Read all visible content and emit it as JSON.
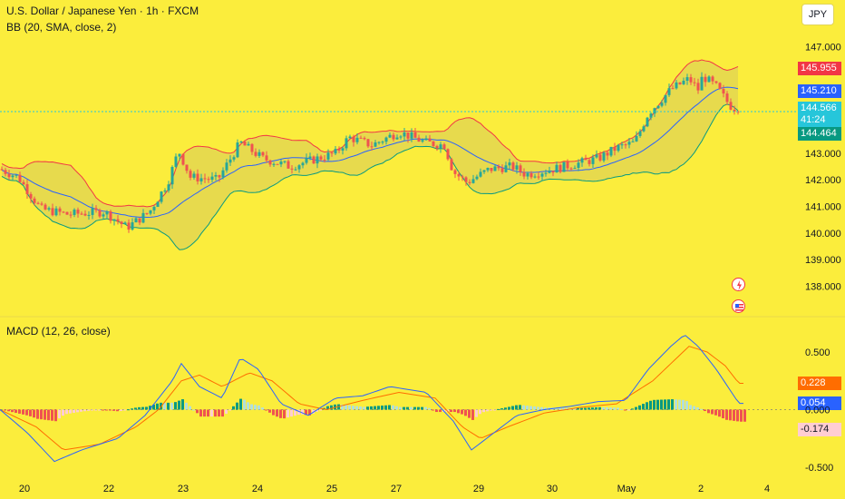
{
  "header": {
    "title": "U.S. Dollar / Japanese Yen · 1h · FXCM",
    "bb_label": "BB (20, SMA, close, 2)",
    "macd_label": "MACD (12, 26, close)",
    "currency": "JPY"
  },
  "price_labels": {
    "bb_upper": "145.955",
    "bb_middle": "145.210",
    "last_price": "144.566",
    "countdown": "41:24",
    "bb_lower": "144.464"
  },
  "macd_labels": {
    "signal": "0.228",
    "macd": "0.054",
    "histogram": "-0.174"
  },
  "colors": {
    "background": "#fbed3c",
    "up": "#26a69a",
    "down": "#ef5350",
    "bb_upper": "#f23645",
    "bb_basis": "#2962ff",
    "bb_lower": "#089981",
    "macd": "#2962ff",
    "signal": "#ff6d00"
  },
  "chart_data": [
    {
      "type": "candlestick",
      "title": "U.S. Dollar / Japanese Yen · 1h · FXCM",
      "indicator": "BB (20, SMA, close, 2)",
      "x_ticks": [
        "20",
        "22",
        "23",
        "24",
        "25",
        "27",
        "29",
        "30",
        "May",
        "2",
        "4"
      ],
      "y_ticks": [
        "147.000",
        "143.000",
        "142.000",
        "141.000",
        "140.000",
        "139.000",
        "138.000"
      ],
      "ylim": [
        137.5,
        147.4
      ],
      "price_anchors": [
        [
          0,
          142.4
        ],
        [
          20,
          142.1
        ],
        [
          45,
          140.9
        ],
        [
          75,
          140.7
        ],
        [
          115,
          140.8
        ],
        [
          140,
          140.2
        ],
        [
          165,
          140.8
        ],
        [
          185,
          141.9
        ],
        [
          197,
          143.1
        ],
        [
          210,
          142.1
        ],
        [
          240,
          142.0
        ],
        [
          265,
          143.4
        ],
        [
          290,
          142.8
        ],
        [
          320,
          142.5
        ],
        [
          350,
          142.8
        ],
        [
          370,
          143.0
        ],
        [
          385,
          143.6
        ],
        [
          410,
          143.3
        ],
        [
          440,
          143.8
        ],
        [
          470,
          143.4
        ],
        [
          490,
          143.3
        ],
        [
          500,
          142.3
        ],
        [
          515,
          141.9
        ],
        [
          540,
          142.4
        ],
        [
          565,
          142.5
        ],
        [
          580,
          142.2
        ],
        [
          610,
          142.4
        ],
        [
          635,
          142.6
        ],
        [
          660,
          142.8
        ],
        [
          680,
          143.2
        ],
        [
          700,
          143.4
        ],
        [
          715,
          144.5
        ],
        [
          740,
          145.4
        ],
        [
          760,
          145.8
        ],
        [
          770,
          145.4
        ],
        [
          775,
          145.9
        ],
        [
          790,
          145.5
        ],
        [
          805,
          144.8
        ],
        [
          815,
          144.6
        ]
      ],
      "last_price": 144.566
    },
    {
      "type": "macd",
      "title": "MACD (12, 26, close)",
      "y_ticks": [
        "0.500",
        "0.000",
        "-0.500"
      ],
      "ylim": [
        -0.6,
        0.72
      ],
      "macd_anchors": [
        [
          0,
          0.0
        ],
        [
          30,
          -0.2
        ],
        [
          60,
          -0.45
        ],
        [
          90,
          -0.35
        ],
        [
          130,
          -0.25
        ],
        [
          160,
          -0.05
        ],
        [
          190,
          0.25
        ],
        [
          200,
          0.4
        ],
        [
          220,
          0.2
        ],
        [
          245,
          0.1
        ],
        [
          265,
          0.45
        ],
        [
          285,
          0.35
        ],
        [
          310,
          0.05
        ],
        [
          340,
          -0.05
        ],
        [
          370,
          0.1
        ],
        [
          400,
          0.12
        ],
        [
          430,
          0.2
        ],
        [
          470,
          0.15
        ],
        [
          500,
          -0.1
        ],
        [
          520,
          -0.35
        ],
        [
          545,
          -0.2
        ],
        [
          570,
          -0.05
        ],
        [
          600,
          0.0
        ],
        [
          630,
          0.03
        ],
        [
          660,
          0.07
        ],
        [
          690,
          0.08
        ],
        [
          715,
          0.35
        ],
        [
          740,
          0.55
        ],
        [
          755,
          0.65
        ],
        [
          770,
          0.55
        ],
        [
          790,
          0.35
        ],
        [
          815,
          0.054
        ]
      ],
      "signal_anchors": [
        [
          0,
          0.0
        ],
        [
          40,
          -0.15
        ],
        [
          70,
          -0.35
        ],
        [
          110,
          -0.3
        ],
        [
          150,
          -0.15
        ],
        [
          175,
          0.0
        ],
        [
          200,
          0.25
        ],
        [
          220,
          0.3
        ],
        [
          245,
          0.2
        ],
        [
          275,
          0.32
        ],
        [
          300,
          0.25
        ],
        [
          330,
          0.05
        ],
        [
          360,
          0.0
        ],
        [
          400,
          0.08
        ],
        [
          440,
          0.15
        ],
        [
          480,
          0.1
        ],
        [
          510,
          -0.15
        ],
        [
          530,
          -0.25
        ],
        [
          560,
          -0.15
        ],
        [
          600,
          -0.03
        ],
        [
          640,
          0.02
        ],
        [
          680,
          0.05
        ],
        [
          720,
          0.25
        ],
        [
          760,
          0.55
        ],
        [
          780,
          0.5
        ],
        [
          800,
          0.38
        ],
        [
          815,
          0.228
        ]
      ],
      "macd_last": 0.054,
      "signal_last": 0.228,
      "histogram_last": -0.174
    }
  ]
}
